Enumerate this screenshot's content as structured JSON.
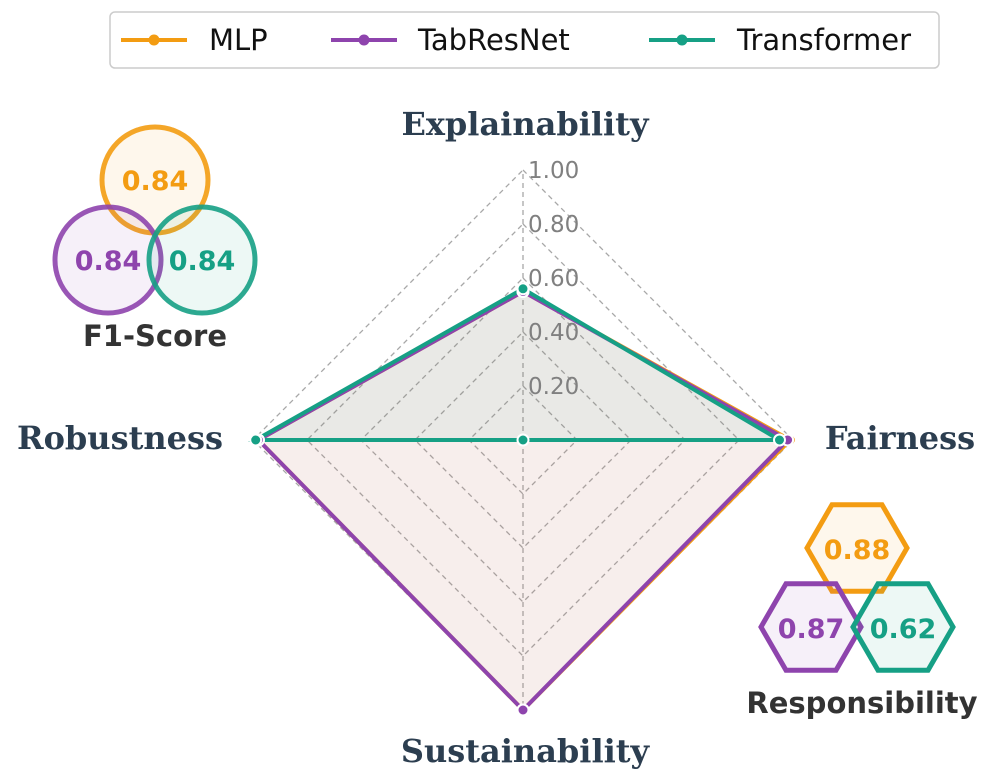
{
  "chart_data": {
    "type": "radar",
    "axes": [
      "Explainability",
      "Fairness",
      "Sustainability",
      "Robustness"
    ],
    "rlim": [
      0,
      1
    ],
    "ticks": [
      "0.20",
      "0.40",
      "0.60",
      "0.80",
      "1.00"
    ],
    "tick_values": [
      0.2,
      0.4,
      0.6,
      0.8,
      1.0
    ],
    "grid": true,
    "legend_position": "top-center",
    "series": [
      {
        "name": "MLP",
        "color": "#f39c12",
        "values": [
          0.55,
          0.99,
          1.0,
          0.98
        ]
      },
      {
        "name": "TabResNet",
        "color": "#8e44ad",
        "values": [
          0.55,
          0.98,
          1.0,
          0.98
        ]
      },
      {
        "name": "Transformer",
        "color": "#16a085",
        "values": [
          0.56,
          0.95,
          0.0,
          0.99
        ]
      }
    ],
    "badges": {
      "f1": {
        "title": "F1-Score",
        "shape": "circle",
        "values": [
          {
            "series": "MLP",
            "label": "0.84"
          },
          {
            "series": "TabResNet",
            "label": "0.84"
          },
          {
            "series": "Transformer",
            "label": "0.84"
          }
        ]
      },
      "responsibility": {
        "title": "Responsibility",
        "shape": "hexagon",
        "values": [
          {
            "series": "MLP",
            "label": "0.88"
          },
          {
            "series": "TabResNet",
            "label": "0.87"
          },
          {
            "series": "Transformer",
            "label": "0.62"
          }
        ]
      }
    }
  }
}
